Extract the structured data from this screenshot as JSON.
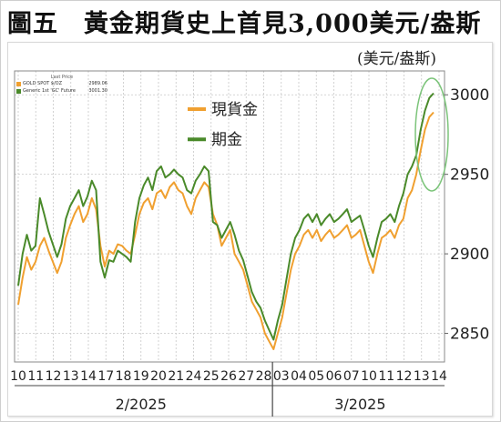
{
  "chart_data": {
    "type": "line",
    "title": "圖五　黃金期貨史上首見3,000美元/盎斯",
    "ylabel": "(美元/盎斯)",
    "ylim": [
      2832,
      3015
    ],
    "yticks": [
      2850,
      2900,
      2950,
      3000
    ],
    "grid": true,
    "legend_placement": "top-left",
    "x_day_labels": [
      "10",
      "11",
      "12",
      "13",
      "14",
      "17",
      "18",
      "19",
      "20",
      "21",
      "24",
      "25",
      "26",
      "27",
      "28",
      "03",
      "04",
      "05",
      "06",
      "07",
      "10",
      "11",
      "12",
      "13",
      "14"
    ],
    "month_labels": [
      "2/2025",
      "3/2025"
    ],
    "mini_legend": {
      "title": "Last Price",
      "rows": [
        {
          "name": "GOLD SPOT $/OZ",
          "value": "2989.06"
        },
        {
          "name": "Generic 1st 'GC' Future",
          "value": "3001.30"
        }
      ]
    },
    "series": [
      {
        "name": "現貨金",
        "color": "#f0a030",
        "values": [
          2868,
          2885,
          2898,
          2890,
          2895,
          2905,
          2910,
          2902,
          2895,
          2888,
          2895,
          2910,
          2918,
          2925,
          2930,
          2920,
          2925,
          2935,
          2928,
          2905,
          2892,
          2902,
          2900,
          2906,
          2905,
          2902,
          2900,
          2912,
          2925,
          2932,
          2935,
          2928,
          2938,
          2940,
          2935,
          2942,
          2945,
          2940,
          2938,
          2930,
          2925,
          2935,
          2940,
          2945,
          2942,
          2925,
          2918,
          2905,
          2910,
          2915,
          2900,
          2895,
          2890,
          2880,
          2870,
          2865,
          2860,
          2850,
          2845,
          2840,
          2850,
          2860,
          2875,
          2890,
          2900,
          2905,
          2912,
          2915,
          2910,
          2915,
          2908,
          2912,
          2915,
          2910,
          2912,
          2915,
          2918,
          2910,
          2912,
          2915,
          2905,
          2895,
          2888,
          2900,
          2910,
          2912,
          2915,
          2910,
          2918,
          2922,
          2935,
          2940,
          2950,
          2965,
          2978,
          2986,
          2989
        ]
      },
      {
        "name": "期金",
        "color": "#4a8a2a",
        "values": [
          2880,
          2900,
          2912,
          2902,
          2905,
          2935,
          2925,
          2914,
          2906,
          2898,
          2906,
          2922,
          2930,
          2935,
          2940,
          2930,
          2936,
          2946,
          2940,
          2895,
          2885,
          2896,
          2895,
          2902,
          2900,
          2898,
          2895,
          2920,
          2935,
          2943,
          2948,
          2940,
          2952,
          2955,
          2948,
          2950,
          2953,
          2950,
          2948,
          2940,
          2938,
          2946,
          2950,
          2955,
          2952,
          2920,
          2918,
          2910,
          2915,
          2920,
          2912,
          2902,
          2896,
          2886,
          2876,
          2870,
          2866,
          2858,
          2852,
          2846,
          2858,
          2868,
          2884,
          2900,
          2910,
          2915,
          2922,
          2925,
          2920,
          2925,
          2918,
          2922,
          2925,
          2920,
          2922,
          2925,
          2928,
          2920,
          2922,
          2924,
          2915,
          2905,
          2898,
          2910,
          2920,
          2922,
          2925,
          2920,
          2930,
          2938,
          2950,
          2955,
          2962,
          2978,
          2990,
          2998,
          3001
        ]
      }
    ]
  }
}
